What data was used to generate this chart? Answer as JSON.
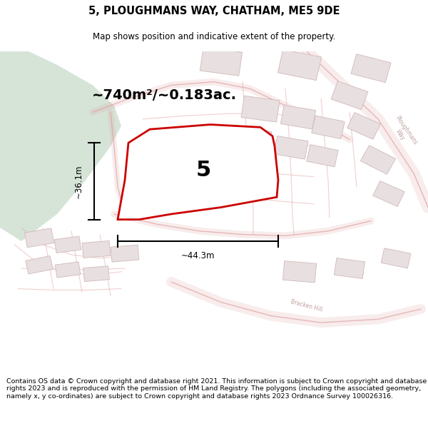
{
  "title": "5, PLOUGHMANS WAY, CHATHAM, ME5 9DE",
  "subtitle": "Map shows position and indicative extent of the property.",
  "area_text": "~740m²/~0.183ac.",
  "width_label": "~44.3m",
  "height_label": "~36.1m",
  "property_number": "5",
  "footer_text": "Contains OS data © Crown copyright and database right 2021. This information is subject to Crown copyright and database rights 2023 and is reproduced with the permission of HM Land Registry. The polygons (including the associated geometry, namely x, y co-ordinates) are subject to Crown copyright and database rights 2023 Ordnance Survey 100026316.",
  "map_bg": "#f7f0f0",
  "green_color": "#d6e4d8",
  "road_fill": "#f5e8e8",
  "road_line": "#e0a0a0",
  "road_line_alpha": 0.8,
  "building_fill": "#e8e0e0",
  "building_edge": "#d0b8b8",
  "plot_fill": "#ffffff",
  "plot_stroke": "#cc0000",
  "plot_lw": 2.0,
  "dim_color": "#000000",
  "label_color": "#b09090",
  "road_label_color": "#c0a0a0"
}
